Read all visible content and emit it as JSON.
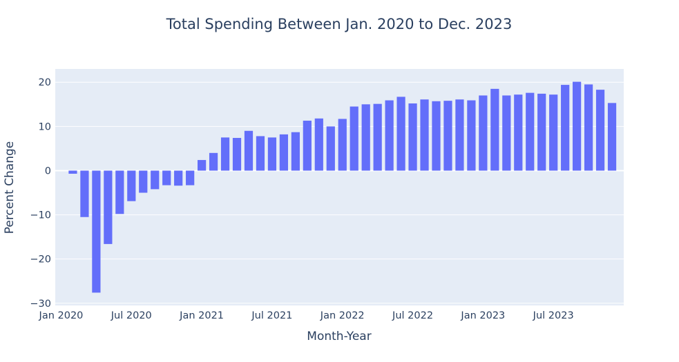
{
  "chart_data": {
    "type": "bar",
    "title": "Total Spending Between Jan. 2020 to Dec. 2023",
    "xlabel": "Month-Year",
    "ylabel": "Percent Change",
    "ylim": [
      -30.5,
      23
    ],
    "y_ticks": [
      20,
      10,
      0,
      -10,
      -20,
      -30
    ],
    "y_tick_labels": [
      "20",
      "10",
      "0",
      "−10",
      "−20",
      "−30"
    ],
    "x_ticks": [
      {
        "index": 0,
        "label": "Jan 2020"
      },
      {
        "index": 6,
        "label": "Jul 2020"
      },
      {
        "index": 12,
        "label": "Jan 2021"
      },
      {
        "index": 18,
        "label": "Jul 2021"
      },
      {
        "index": 24,
        "label": "Jan 2022"
      },
      {
        "index": 30,
        "label": "Jul 2022"
      },
      {
        "index": 36,
        "label": "Jan 2023"
      },
      {
        "index": 42,
        "label": "Jul 2023"
      }
    ],
    "categories": [
      "Jan 2020",
      "Feb 2020",
      "Mar 2020",
      "Apr 2020",
      "May 2020",
      "Jun 2020",
      "Jul 2020",
      "Aug 2020",
      "Sep 2020",
      "Oct 2020",
      "Nov 2020",
      "Dec 2020",
      "Jan 2021",
      "Feb 2021",
      "Mar 2021",
      "Apr 2021",
      "May 2021",
      "Jun 2021",
      "Jul 2021",
      "Aug 2021",
      "Sep 2021",
      "Oct 2021",
      "Nov 2021",
      "Dec 2021",
      "Jan 2022",
      "Feb 2022",
      "Mar 2022",
      "Apr 2022",
      "May 2022",
      "Jun 2022",
      "Jul 2022",
      "Aug 2022",
      "Sep 2022",
      "Oct 2022",
      "Nov 2022",
      "Dec 2022",
      "Jan 2023",
      "Feb 2023",
      "Mar 2023",
      "Apr 2023",
      "May 2023",
      "Jun 2023",
      "Jul 2023",
      "Aug 2023",
      "Sep 2023",
      "Oct 2023",
      "Nov 2023",
      "Dec 2023"
    ],
    "values": [
      0,
      -0.7,
      -10.5,
      -27.6,
      -16.6,
      -9.8,
      -6.9,
      -5.0,
      -4.2,
      -3.3,
      -3.4,
      -3.3,
      2.4,
      4.0,
      7.5,
      7.4,
      9.0,
      7.8,
      7.5,
      8.2,
      8.7,
      11.3,
      11.8,
      10.0,
      11.7,
      14.5,
      15.0,
      15.1,
      15.9,
      16.7,
      15.2,
      16.1,
      15.7,
      15.8,
      16.1,
      15.9,
      17.0,
      18.5,
      17.0,
      17.2,
      17.6,
      17.4,
      17.2,
      19.4,
      20.1,
      19.5,
      18.3,
      15.3
    ],
    "bar_color": "#636efa",
    "plot_bg": "#e5ecf6",
    "grid": true
  }
}
